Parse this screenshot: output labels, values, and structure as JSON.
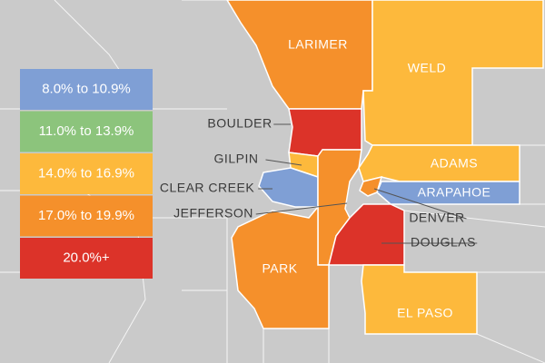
{
  "legend": [
    {
      "label": "8.0% to 10.9%",
      "color": "#7f9fd5"
    },
    {
      "label": "11.0% to 13.9%",
      "color": "#8cc47c"
    },
    {
      "label": "14.0% to 16.9%",
      "color": "#fdb93c"
    },
    {
      "label": "17.0% to 19.9%",
      "color": "#f5902b"
    },
    {
      "label": "20.0%+",
      "color": "#dc3329"
    }
  ],
  "counties": [
    {
      "name": "LARIMER",
      "color": "#f5902b"
    },
    {
      "name": "WELD",
      "color": "#fdb93c"
    },
    {
      "name": "BOULDER",
      "color": "#dc3329"
    },
    {
      "name": "GILPIN",
      "color": "#fdb93c"
    },
    {
      "name": "CLEAR CREEK",
      "color": "#7f9fd5"
    },
    {
      "name": "JEFFERSON",
      "color": "#f5902b"
    },
    {
      "name": "ADAMS",
      "color": "#fdb93c"
    },
    {
      "name": "ARAPAHOE",
      "color": "#7f9fd5"
    },
    {
      "name": "DENVER",
      "color": "#f5902b"
    },
    {
      "name": "DOUGLAS",
      "color": "#dc3329"
    },
    {
      "name": "PARK",
      "color": "#f5902b"
    },
    {
      "name": "EL PASO",
      "color": "#fdb93c"
    }
  ]
}
